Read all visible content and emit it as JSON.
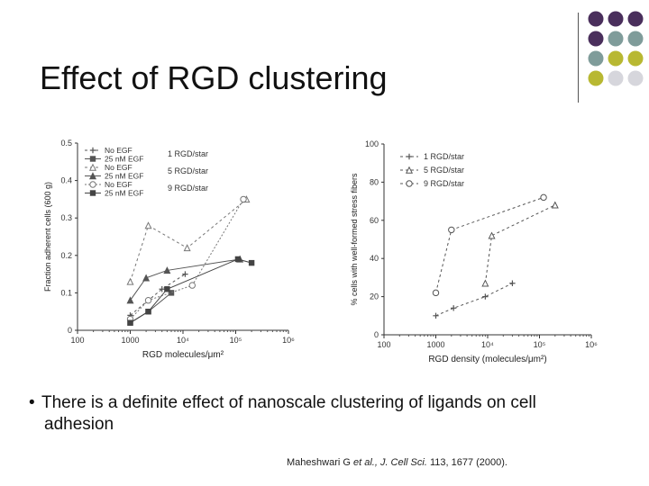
{
  "slide": {
    "title": "Effect of RGD clustering",
    "bullet_line1": "There is a definite effect of nanoscale clustering of ligands on cell",
    "bullet_line2": "adhesion",
    "reference_prefix": "Maheshwari G ",
    "reference_italic": "et al., J. Cell Sci.",
    "reference_suffix": " 113, 1677 (2000).",
    "decor_colors": [
      "#4a2f5c",
      "#7f9c9a",
      "#b8b832",
      "#d6d6dc"
    ]
  },
  "chart_data": [
    {
      "type": "line",
      "x_scale": "log",
      "xlim": [
        100,
        1000000
      ],
      "ylim": [
        0,
        0.5
      ],
      "xlabel": "RGD molecules/μm²",
      "ylabel": "Fraction adherent cells (600 g)",
      "x_ticks": [
        "100",
        "1000",
        "10⁴",
        "10⁵",
        "10⁶"
      ],
      "y_ticks": [
        "0",
        "0.1",
        "0.2",
        "0.3",
        "0.4",
        "0.5"
      ],
      "legend_entries": [
        "No EGF",
        "25 nM EGF",
        "No EGF",
        "25 nM EGF",
        "No EGF",
        "25 nM EGF"
      ],
      "legend_groups": [
        "1 RGD/star",
        "5 RGD/star",
        "9 RGD/star"
      ],
      "legend_position": "top-left",
      "series": [
        {
          "legend_entry": "No EGF",
          "group": "1 RGD/star",
          "marker": "cross",
          "dash": "3,3",
          "color": "#555555",
          "points": [
            [
              1000,
              0.04
            ],
            [
              2200,
              0.08
            ],
            [
              4000,
              0.11
            ],
            [
              11000,
              0.15
            ]
          ]
        },
        {
          "legend_entry": "25 nM EGF",
          "group": "1 RGD/star",
          "marker": "square-filled",
          "dash": "",
          "color": "#555555",
          "points": [
            [
              1000,
              0.02
            ],
            [
              2200,
              0.05
            ],
            [
              6000,
              0.1
            ]
          ]
        },
        {
          "legend_entry": "No EGF",
          "group": "5 RGD/star",
          "marker": "triangle-open",
          "dash": "3,3",
          "color": "#777777",
          "points": [
            [
              1000,
              0.13
            ],
            [
              2200,
              0.28
            ],
            [
              12000,
              0.22
            ],
            [
              160000,
              0.35
            ]
          ]
        },
        {
          "legend_entry": "25 nM EGF",
          "group": "5 RGD/star",
          "marker": "triangle-filled",
          "dash": "",
          "color": "#555555",
          "points": [
            [
              1000,
              0.08
            ],
            [
              2000,
              0.14
            ],
            [
              5000,
              0.16
            ],
            [
              120000,
              0.19
            ]
          ]
        },
        {
          "legend_entry": "No EGF",
          "group": "9 RGD/star",
          "marker": "circle-open",
          "dash": "2,2",
          "color": "#777777",
          "points": [
            [
              1000,
              0.03
            ],
            [
              2200,
              0.08
            ],
            [
              15000,
              0.12
            ],
            [
              140000,
              0.35
            ]
          ]
        },
        {
          "legend_entry": "25 nM EGF",
          "group": "9 RGD/star",
          "marker": "square-filled",
          "dash": "",
          "color": "#444444",
          "points": [
            [
              1000,
              0.02
            ],
            [
              2200,
              0.05
            ],
            [
              5000,
              0.11
            ],
            [
              110000,
              0.19
            ],
            [
              200000,
              0.18
            ]
          ]
        }
      ]
    },
    {
      "type": "line",
      "x_scale": "log",
      "xlim": [
        100,
        1000000
      ],
      "ylim": [
        0,
        100
      ],
      "xlabel": "RGD density (molecules/μm²)",
      "ylabel": "% cells with well-formed stress fibers",
      "x_ticks": [
        "100",
        "1000",
        "10⁴",
        "10⁵",
        "10⁶"
      ],
      "y_ticks": [
        "0",
        "20",
        "40",
        "60",
        "80",
        "100"
      ],
      "legend_position": "top-right",
      "series": [
        {
          "name": "1 RGD/star",
          "marker": "cross",
          "dash": "3,3",
          "color": "#555555",
          "points": [
            [
              1000,
              10
            ],
            [
              2200,
              14
            ],
            [
              9000,
              20
            ],
            [
              30000,
              27
            ]
          ]
        },
        {
          "name": "5 RGD/star",
          "marker": "triangle-open",
          "dash": "3,3",
          "color": "#555555",
          "points": [
            [
              9000,
              27
            ],
            [
              12000,
              52
            ],
            [
              200000,
              68
            ]
          ]
        },
        {
          "name": "9 RGD/star",
          "marker": "circle-open",
          "dash": "3,3",
          "color": "#555555",
          "points": [
            [
              1000,
              22
            ],
            [
              2000,
              55
            ],
            [
              120000,
              72
            ]
          ]
        }
      ]
    }
  ]
}
